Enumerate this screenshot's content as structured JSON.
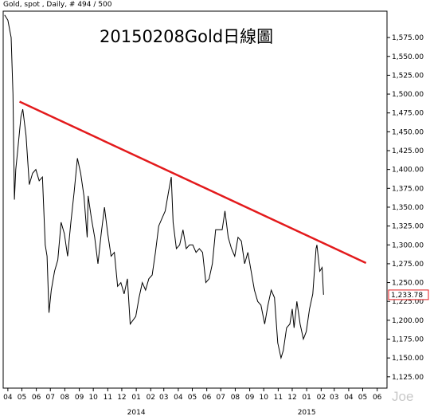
{
  "header": {
    "text": "Gold, spot , Daily, # 494 / 500"
  },
  "chart_data": {
    "type": "line",
    "title": "20150208Gold日線圖",
    "ylim": [
      1110,
      1610
    ],
    "y_ticks": [
      1125,
      1150,
      1175,
      1200,
      1225,
      1250,
      1275,
      1300,
      1325,
      1350,
      1375,
      1400,
      1425,
      1450,
      1475,
      1500,
      1525,
      1550,
      1575
    ],
    "y_tick_labels": [
      "1,125.00",
      "1,150.00",
      "1,175.00",
      "1,200.00",
      "1,225.00",
      "1,250.00",
      "1,275.00",
      "1,300.00",
      "1,325.00",
      "1,350.00",
      "1,375.00",
      "1,400.00",
      "1,425.00",
      "1,450.00",
      "1,475.00",
      "1,500.00",
      "1,525.00",
      "1,550.00",
      "1,575.00"
    ],
    "x_ticks": [
      {
        "label": "04",
        "x": "2013-04"
      },
      {
        "label": "05",
        "x": "2013-05"
      },
      {
        "label": "06",
        "x": "2013-06"
      },
      {
        "label": "07",
        "x": "2013-07"
      },
      {
        "label": "08",
        "x": "2013-08"
      },
      {
        "label": "09",
        "x": "2013-09"
      },
      {
        "label": "10",
        "x": "2013-10"
      },
      {
        "label": "11",
        "x": "2013-11"
      },
      {
        "label": "12",
        "x": "2013-12"
      },
      {
        "label": "01",
        "x": "2014-01"
      },
      {
        "label": "02",
        "x": "2014-02"
      },
      {
        "label": "03",
        "x": "2014-03"
      },
      {
        "label": "04",
        "x": "2014-04"
      },
      {
        "label": "05",
        "x": "2014-05"
      },
      {
        "label": "06",
        "x": "2014-06"
      },
      {
        "label": "07",
        "x": "2014-07"
      },
      {
        "label": "08",
        "x": "2014-08"
      },
      {
        "label": "09",
        "x": "2014-09"
      },
      {
        "label": "10",
        "x": "2014-10"
      },
      {
        "label": "11",
        "x": "2014-11"
      },
      {
        "label": "12",
        "x": "2014-12"
      },
      {
        "label": "01",
        "x": "2015-01"
      },
      {
        "label": "02",
        "x": "2015-02"
      },
      {
        "label": "03",
        "x": "2015-03"
      },
      {
        "label": "04",
        "x": "2015-04"
      },
      {
        "label": "05",
        "x": "2015-05"
      },
      {
        "label": "06",
        "x": "2015-06"
      }
    ],
    "year_labels": [
      {
        "label": "2014",
        "x": "2014-01"
      },
      {
        "label": "2015",
        "x": "2015-01"
      }
    ],
    "series": [
      {
        "color": "#000000",
        "points": [
          [
            "2013-03-25",
            1605
          ],
          [
            "2013-04-01",
            1598
          ],
          [
            "2013-04-08",
            1575
          ],
          [
            "2013-04-12",
            1500
          ],
          [
            "2013-04-15",
            1360
          ],
          [
            "2013-04-18",
            1400
          ],
          [
            "2013-04-22",
            1425
          ],
          [
            "2013-04-29",
            1470
          ],
          [
            "2013-05-03",
            1480
          ],
          [
            "2013-05-10",
            1445
          ],
          [
            "2013-05-17",
            1380
          ],
          [
            "2013-05-24",
            1395
          ],
          [
            "2013-05-31",
            1400
          ],
          [
            "2013-06-07",
            1385
          ],
          [
            "2013-06-14",
            1390
          ],
          [
            "2013-06-20",
            1300
          ],
          [
            "2013-06-24",
            1285
          ],
          [
            "2013-06-28",
            1210
          ],
          [
            "2013-07-03",
            1240
          ],
          [
            "2013-07-10",
            1265
          ],
          [
            "2013-07-17",
            1280
          ],
          [
            "2013-07-24",
            1330
          ],
          [
            "2013-07-31",
            1315
          ],
          [
            "2013-08-07",
            1285
          ],
          [
            "2013-08-14",
            1330
          ],
          [
            "2013-08-21",
            1370
          ],
          [
            "2013-08-28",
            1415
          ],
          [
            "2013-09-04",
            1395
          ],
          [
            "2013-09-11",
            1365
          ],
          [
            "2013-09-18",
            1310
          ],
          [
            "2013-09-20",
            1365
          ],
          [
            "2013-09-27",
            1335
          ],
          [
            "2013-10-04",
            1310
          ],
          [
            "2013-10-11",
            1275
          ],
          [
            "2013-10-18",
            1315
          ],
          [
            "2013-10-25",
            1350
          ],
          [
            "2013-11-01",
            1315
          ],
          [
            "2013-11-08",
            1285
          ],
          [
            "2013-11-15",
            1290
          ],
          [
            "2013-11-22",
            1245
          ],
          [
            "2013-11-29",
            1250
          ],
          [
            "2013-12-06",
            1235
          ],
          [
            "2013-12-13",
            1255
          ],
          [
            "2013-12-19",
            1195
          ],
          [
            "2013-12-31",
            1205
          ],
          [
            "2014-01-07",
            1230
          ],
          [
            "2014-01-14",
            1250
          ],
          [
            "2014-01-21",
            1240
          ],
          [
            "2014-01-28",
            1255
          ],
          [
            "2014-02-04",
            1260
          ],
          [
            "2014-02-11",
            1290
          ],
          [
            "2014-02-18",
            1325
          ],
          [
            "2014-02-25",
            1335
          ],
          [
            "2014-03-04",
            1345
          ],
          [
            "2014-03-11",
            1370
          ],
          [
            "2014-03-17",
            1390
          ],
          [
            "2014-03-21",
            1330
          ],
          [
            "2014-03-28",
            1295
          ],
          [
            "2014-04-04",
            1300
          ],
          [
            "2014-04-11",
            1320
          ],
          [
            "2014-04-18",
            1295
          ],
          [
            "2014-04-25",
            1300
          ],
          [
            "2014-05-02",
            1300
          ],
          [
            "2014-05-09",
            1290
          ],
          [
            "2014-05-16",
            1295
          ],
          [
            "2014-05-23",
            1290
          ],
          [
            "2014-05-30",
            1250
          ],
          [
            "2014-06-06",
            1255
          ],
          [
            "2014-06-13",
            1275
          ],
          [
            "2014-06-20",
            1320
          ],
          [
            "2014-06-27",
            1320
          ],
          [
            "2014-07-04",
            1320
          ],
          [
            "2014-07-10",
            1345
          ],
          [
            "2014-07-17",
            1310
          ],
          [
            "2014-07-24",
            1295
          ],
          [
            "2014-07-31",
            1285
          ],
          [
            "2014-08-07",
            1310
          ],
          [
            "2014-08-14",
            1305
          ],
          [
            "2014-08-21",
            1275
          ],
          [
            "2014-08-28",
            1290
          ],
          [
            "2014-09-04",
            1265
          ],
          [
            "2014-09-11",
            1240
          ],
          [
            "2014-09-18",
            1225
          ],
          [
            "2014-09-25",
            1220
          ],
          [
            "2014-10-03",
            1195
          ],
          [
            "2014-10-10",
            1220
          ],
          [
            "2014-10-17",
            1240
          ],
          [
            "2014-10-24",
            1230
          ],
          [
            "2014-10-31",
            1170
          ],
          [
            "2014-11-07",
            1150
          ],
          [
            "2014-11-12",
            1160
          ],
          [
            "2014-11-19",
            1190
          ],
          [
            "2014-11-26",
            1195
          ],
          [
            "2014-12-01",
            1215
          ],
          [
            "2014-12-05",
            1190
          ],
          [
            "2014-12-11",
            1225
          ],
          [
            "2014-12-18",
            1195
          ],
          [
            "2014-12-25",
            1175
          ],
          [
            "2014-12-31",
            1185
          ],
          [
            "2015-01-07",
            1215
          ],
          [
            "2015-01-14",
            1235
          ],
          [
            "2015-01-21",
            1295
          ],
          [
            "2015-01-23",
            1300
          ],
          [
            "2015-01-29",
            1265
          ],
          [
            "2015-02-03",
            1270
          ],
          [
            "2015-02-06",
            1233.78
          ]
        ]
      },
      {
        "color": "#e31a1c",
        "points": [
          [
            "2013-04-26",
            1490
          ],
          [
            "2015-05-08",
            1276
          ]
        ]
      }
    ],
    "last_value": {
      "label": "1,233.78",
      "value": 1233.78
    }
  },
  "watermark": {
    "text": "Joe"
  }
}
